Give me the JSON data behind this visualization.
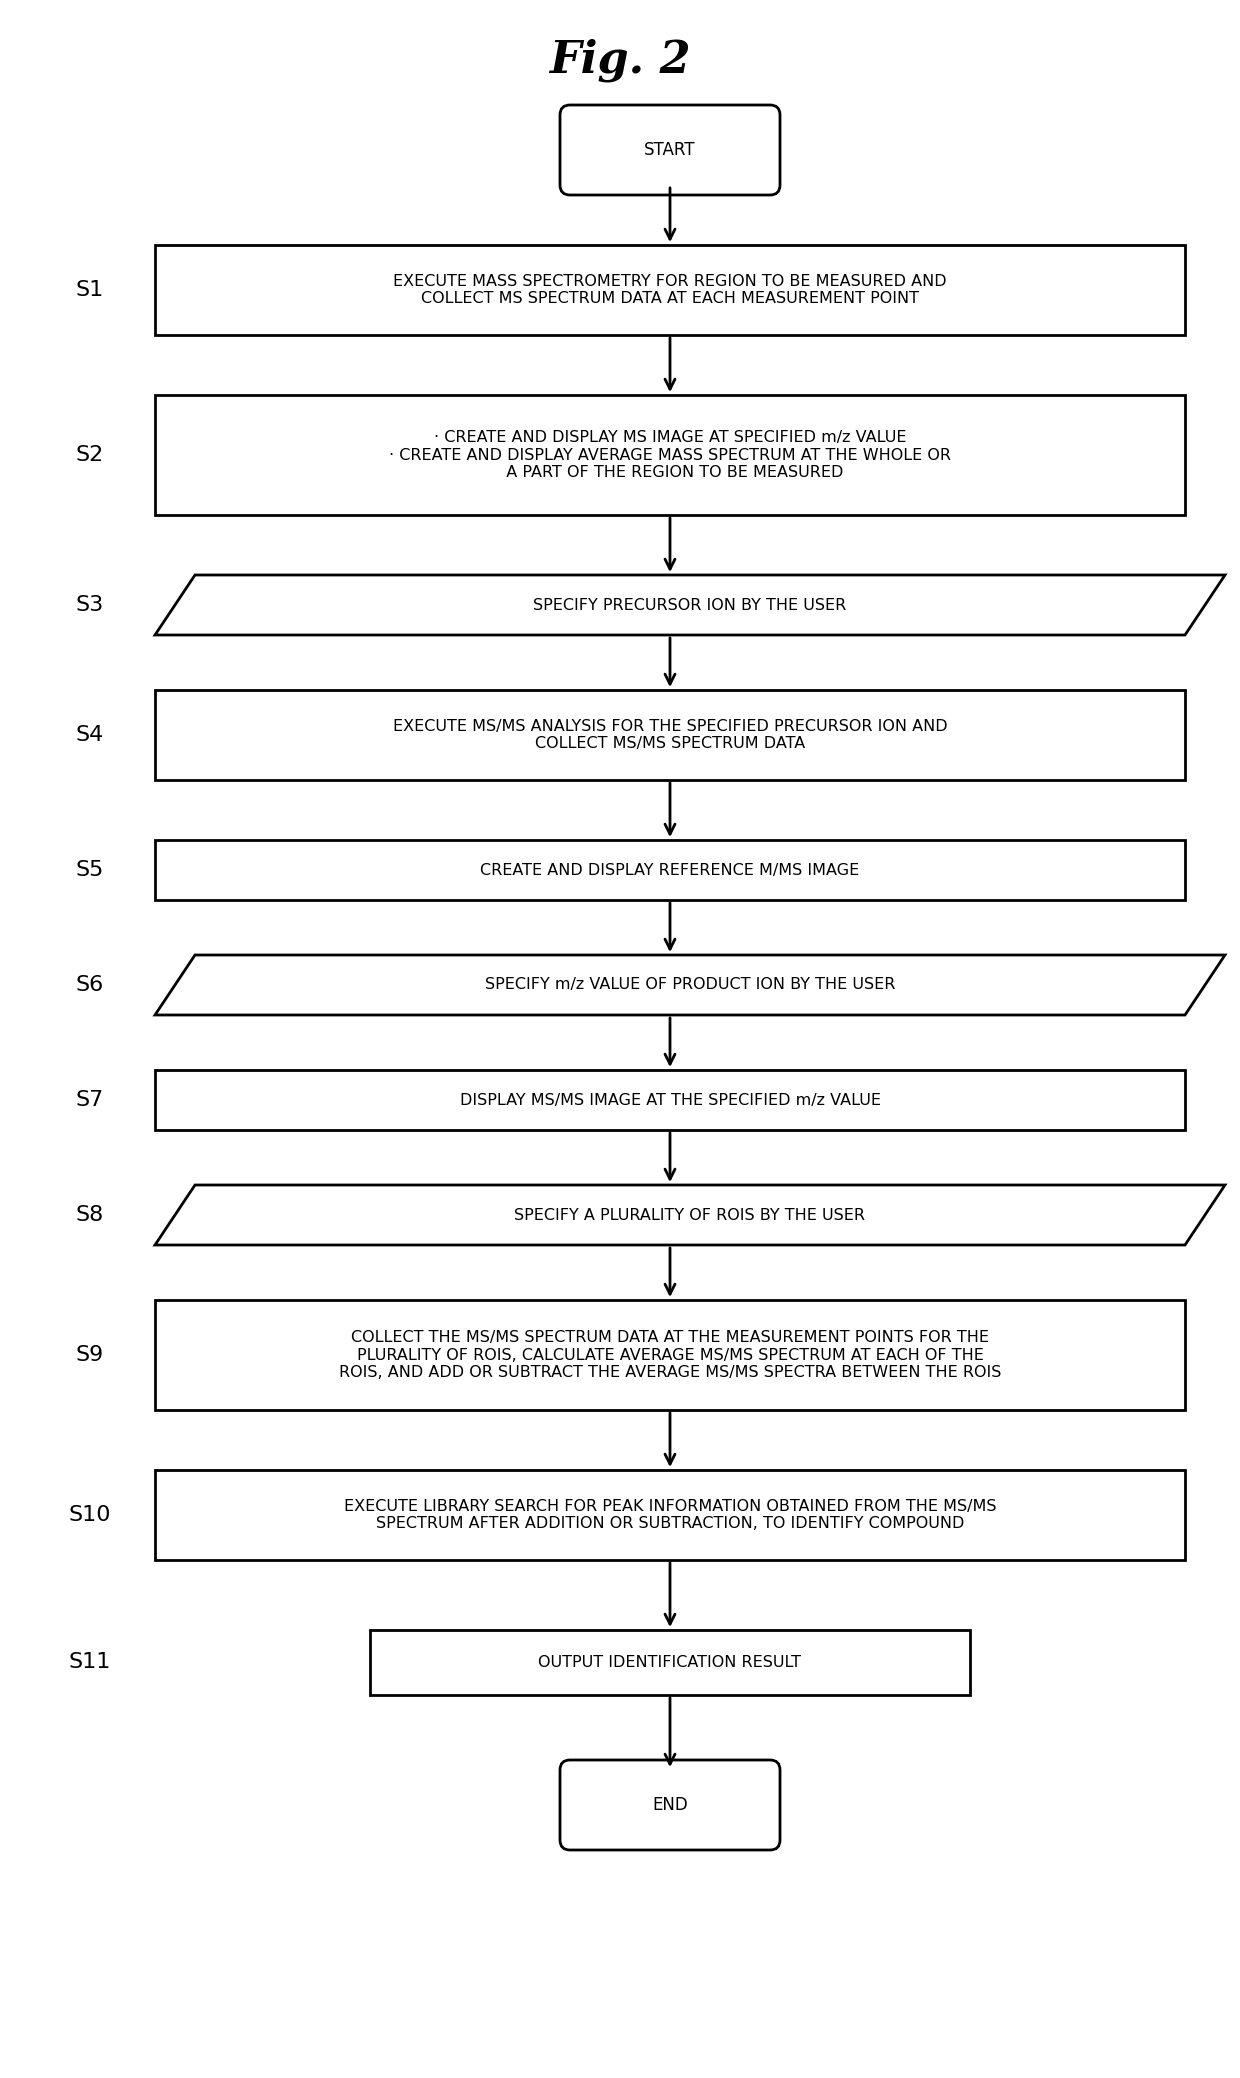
{
  "title": "Fig. 2",
  "background_color": "#ffffff",
  "steps": [
    {
      "id": "START",
      "label": "START",
      "shape": "rounded",
      "step_label": ""
    },
    {
      "id": "S1",
      "label": "EXECUTE MASS SPECTROMETRY FOR REGION TO BE MEASURED AND\nCOLLECT MS SPECTRUM DATA AT EACH MEASUREMENT POINT",
      "shape": "rect",
      "step_label": "S1"
    },
    {
      "id": "S2",
      "label": "· CREATE AND DISPLAY MS IMAGE AT SPECIFIED m/z VALUE\n· CREATE AND DISPLAY AVERAGE MASS SPECTRUM AT THE WHOLE OR\n  A PART OF THE REGION TO BE MEASURED",
      "shape": "rect",
      "step_label": "S2"
    },
    {
      "id": "S3",
      "label": "SPECIFY PRECURSOR ION BY THE USER",
      "shape": "parallelogram",
      "step_label": "S3"
    },
    {
      "id": "S4",
      "label": "EXECUTE MS/MS ANALYSIS FOR THE SPECIFIED PRECURSOR ION AND\nCOLLECT MS/MS SPECTRUM DATA",
      "shape": "rect",
      "step_label": "S4"
    },
    {
      "id": "S5",
      "label": "CREATE AND DISPLAY REFERENCE M/MS IMAGE",
      "shape": "rect",
      "step_label": "S5"
    },
    {
      "id": "S6",
      "label": "SPECIFY m/z VALUE OF PRODUCT ION BY THE USER",
      "shape": "parallelogram",
      "step_label": "S6"
    },
    {
      "id": "S7",
      "label": "DISPLAY MS/MS IMAGE AT THE SPECIFIED m/z VALUE",
      "shape": "rect",
      "step_label": "S7"
    },
    {
      "id": "S8",
      "label": "SPECIFY A PLURALITY OF ROIS BY THE USER",
      "shape": "parallelogram",
      "step_label": "S8"
    },
    {
      "id": "S9",
      "label": "COLLECT THE MS/MS SPECTRUM DATA AT THE MEASUREMENT POINTS FOR THE\nPLURALITY OF ROIS, CALCULATE AVERAGE MS/MS SPECTRUM AT EACH OF THE\nROIS, AND ADD OR SUBTRACT THE AVERAGE MS/MS SPECTRA BETWEEN THE ROIS",
      "shape": "rect",
      "step_label": "S9"
    },
    {
      "id": "S10",
      "label": "EXECUTE LIBRARY SEARCH FOR PEAK INFORMATION OBTAINED FROM THE MS/MS\nSPECTRUM AFTER ADDITION OR SUBTRACTION, TO IDENTIFY COMPOUND",
      "shape": "rect",
      "step_label": "S10"
    },
    {
      "id": "S11",
      "label": "OUTPUT IDENTIFICATION RESULT",
      "shape": "rect",
      "step_label": "S11"
    },
    {
      "id": "END",
      "label": "END",
      "shape": "rounded",
      "step_label": ""
    }
  ],
  "line_color": "#000000",
  "text_color": "#000000"
}
